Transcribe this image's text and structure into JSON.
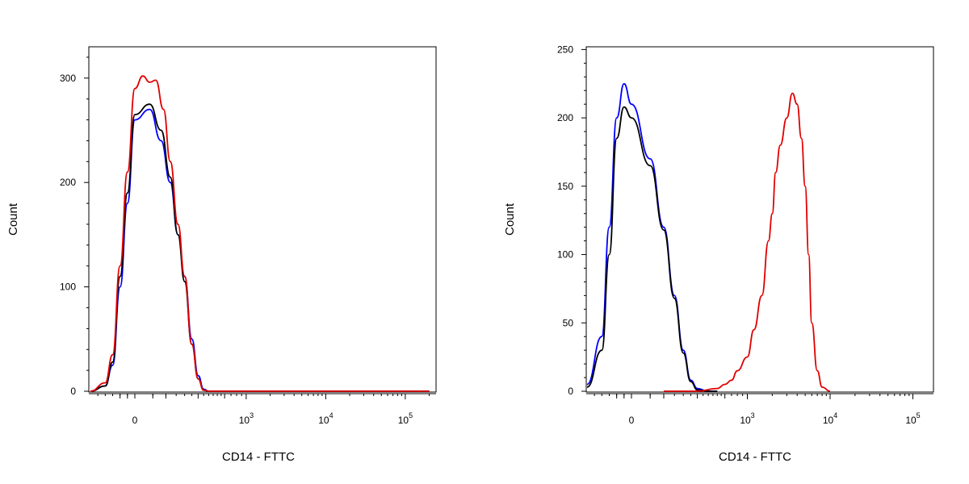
{
  "chart_data": [
    {
      "type": "line",
      "xlabel": "CD14 - FTTC",
      "ylabel": "Count",
      "x_scale": "biexponential",
      "ylim": [
        0,
        330
      ],
      "y_ticks": [
        0,
        100,
        200,
        300
      ],
      "x_ticks": [
        {
          "value": 0,
          "base": "0",
          "exp": ""
        },
        {
          "value": 1000,
          "base": "10",
          "exp": "3"
        },
        {
          "value": 10000,
          "base": "10",
          "exp": "4"
        },
        {
          "value": 100000,
          "base": "10",
          "exp": "5"
        }
      ],
      "grid": false,
      "series": [
        {
          "color": "#0000ff",
          "x": [
            -300,
            -200,
            -150,
            -100,
            -50,
            0,
            40,
            80,
            120,
            160,
            200,
            250,
            300,
            350,
            400,
            2000,
            200000
          ],
          "y": [
            0,
            5,
            25,
            100,
            180,
            260,
            270,
            240,
            200,
            150,
            110,
            50,
            15,
            2,
            0,
            0,
            0
          ]
        },
        {
          "color": "#000000",
          "x": [
            -300,
            -200,
            -150,
            -100,
            -50,
            0,
            40,
            80,
            120,
            160,
            200,
            250,
            300,
            350,
            400,
            2000,
            200000
          ],
          "y": [
            0,
            5,
            28,
            110,
            190,
            265,
            275,
            250,
            205,
            150,
            105,
            45,
            12,
            1,
            0,
            0,
            0
          ]
        },
        {
          "color": "#e00000",
          "x": [
            -300,
            -200,
            -150,
            -100,
            -50,
            0,
            20,
            40,
            60,
            90,
            120,
            160,
            200,
            250,
            300,
            350,
            400,
            2000,
            200000
          ],
          "y": [
            0,
            8,
            35,
            120,
            210,
            290,
            302,
            296,
            298,
            270,
            220,
            160,
            110,
            45,
            12,
            1,
            0,
            0,
            0
          ]
        }
      ]
    },
    {
      "type": "line",
      "xlabel": "CD14 - FTTC",
      "ylabel": "Count",
      "x_scale": "biexponential",
      "ylim": [
        0,
        252
      ],
      "y_ticks": [
        0,
        50,
        100,
        150,
        200,
        250
      ],
      "x_ticks": [
        {
          "value": 0,
          "base": "0",
          "exp": ""
        },
        {
          "value": 1000,
          "base": "10",
          "exp": "3"
        },
        {
          "value": 10000,
          "base": "10",
          "exp": "4"
        },
        {
          "value": 100000,
          "base": "10",
          "exp": "5"
        }
      ],
      "grid": false,
      "series": [
        {
          "color": "#0000ff",
          "x": [
            -400,
            -300,
            -200,
            -150,
            -100,
            -50,
            0,
            50,
            100,
            150,
            200,
            250,
            300,
            400,
            500,
            200000
          ],
          "y": [
            0,
            5,
            40,
            120,
            200,
            225,
            210,
            170,
            120,
            70,
            30,
            8,
            2,
            0,
            0,
            0
          ]
        },
        {
          "color": "#000000",
          "x": [
            -400,
            -300,
            -200,
            -150,
            -100,
            -50,
            0,
            50,
            100,
            150,
            200,
            250,
            300,
            400,
            500,
            200000
          ],
          "y": [
            0,
            3,
            30,
            100,
            185,
            208,
            200,
            165,
            118,
            68,
            28,
            7,
            1,
            0,
            0,
            0
          ]
        },
        {
          "color": "#e00000",
          "x": [
            100,
            300,
            500,
            600,
            700,
            800,
            1000,
            1200,
            1500,
            1800,
            2000,
            2200,
            2500,
            3000,
            3500,
            4000,
            4500,
            5000,
            5500,
            6000,
            7000,
            8000,
            10000,
            200000
          ],
          "y": [
            0,
            0,
            2,
            5,
            8,
            15,
            25,
            45,
            70,
            110,
            130,
            160,
            180,
            200,
            218,
            210,
            185,
            150,
            100,
            50,
            15,
            3,
            0,
            0
          ]
        }
      ]
    }
  ]
}
